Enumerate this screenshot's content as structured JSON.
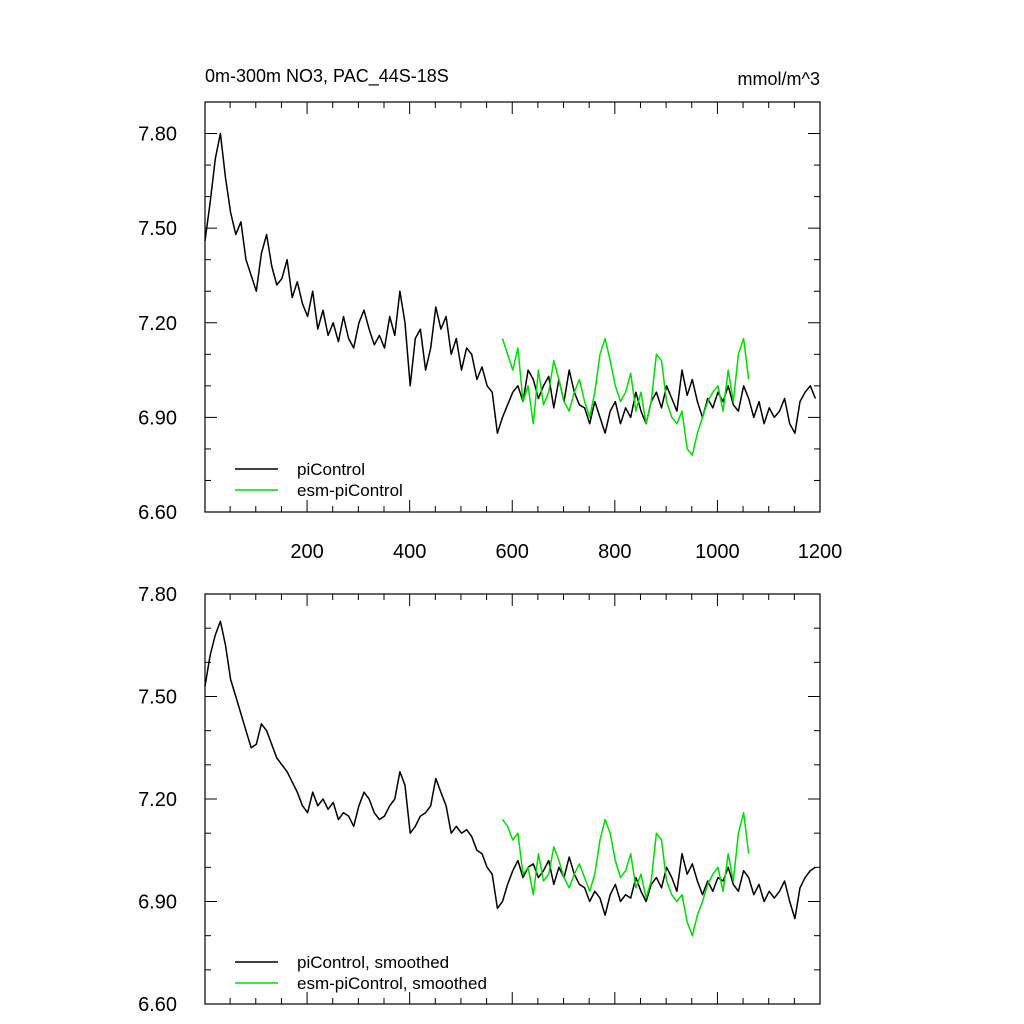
{
  "chart_data": [
    {
      "type": "line",
      "title": "0m-300m NO3, PAC_44S-18S",
      "units": "mmol/m^3",
      "xlim": [
        1,
        1200
      ],
      "ylim": [
        6.6,
        7.9
      ],
      "xticks": [
        200,
        400,
        600,
        800,
        1000,
        1200
      ],
      "xtick_labels": [
        "200",
        "400",
        "600",
        "800",
        "1000",
        "1200"
      ],
      "yticks": [
        6.6,
        6.9,
        7.2,
        7.5,
        7.8
      ],
      "ytick_labels": [
        "6.60",
        "6.90",
        "7.20",
        "7.50",
        "7.80"
      ],
      "grid": false,
      "legend": "bottom-left",
      "series": [
        {
          "name": "piControl",
          "color": "#000000",
          "x_start": 1,
          "x_step": 10,
          "values": [
            7.46,
            7.58,
            7.72,
            7.8,
            7.66,
            7.55,
            7.48,
            7.52,
            7.4,
            7.35,
            7.3,
            7.42,
            7.48,
            7.38,
            7.32,
            7.34,
            7.4,
            7.28,
            7.33,
            7.26,
            7.22,
            7.3,
            7.18,
            7.24,
            7.16,
            7.2,
            7.14,
            7.22,
            7.15,
            7.12,
            7.2,
            7.24,
            7.18,
            7.13,
            7.16,
            7.12,
            7.22,
            7.16,
            7.3,
            7.2,
            7.0,
            7.15,
            7.18,
            7.05,
            7.12,
            7.25,
            7.18,
            7.22,
            7.1,
            7.15,
            7.05,
            7.12,
            7.1,
            7.02,
            7.06,
            7.0,
            6.98,
            6.85,
            6.9,
            6.94,
            6.98,
            7.0,
            6.95,
            7.05,
            7.02,
            6.96,
            7.0,
            7.03,
            6.93,
            7.02,
            6.95,
            7.05,
            6.98,
            6.94,
            6.93,
            6.88,
            6.95,
            6.9,
            6.85,
            6.92,
            6.95,
            6.88,
            6.93,
            6.9,
            6.98,
            6.92,
            6.88,
            6.95,
            6.98,
            6.93,
            7.0,
            6.96,
            6.92,
            7.05,
            6.97,
            7.02,
            6.95,
            6.9,
            6.96,
            6.93,
            6.98,
            6.95,
            7.0,
            6.94,
            6.92,
            7.0,
            6.96,
            6.9,
            6.95,
            6.88,
            6.93,
            6.9,
            6.92,
            6.96,
            6.88,
            6.85,
            6.95,
            6.98,
            7.0,
            6.96
          ]
        },
        {
          "name": "esm-piControl",
          "color": "#00dd00",
          "x_start": 581,
          "x_step": 10,
          "values": [
            7.15,
            7.1,
            7.05,
            7.12,
            6.95,
            7.0,
            6.88,
            7.05,
            6.94,
            6.98,
            7.08,
            7.02,
            6.95,
            6.92,
            6.98,
            7.02,
            6.95,
            6.9,
            6.98,
            7.1,
            7.15,
            7.08,
            7.0,
            6.95,
            6.98,
            7.04,
            6.92,
            6.98,
            6.88,
            6.95,
            7.1,
            7.08,
            6.95,
            6.9,
            6.88,
            6.92,
            6.8,
            6.78,
            6.85,
            6.9,
            6.95,
            6.98,
            7.0,
            6.92,
            7.05,
            6.95,
            7.1,
            7.15,
            7.02
          ]
        }
      ]
    },
    {
      "type": "line",
      "units": "mmol/m^3",
      "xlim": [
        1,
        1200
      ],
      "ylim": [
        6.6,
        7.8
      ],
      "yticks": [
        6.6,
        6.9,
        7.2,
        7.5,
        7.8
      ],
      "ytick_labels": [
        "6.60",
        "6.90",
        "7.20",
        "7.50",
        "7.80"
      ],
      "grid": false,
      "legend": "bottom-left",
      "series": [
        {
          "name": "piControl, smoothed",
          "color": "#000000",
          "x_start": 1,
          "x_step": 10,
          "values": [
            7.53,
            7.62,
            7.68,
            7.72,
            7.65,
            7.55,
            7.5,
            7.45,
            7.4,
            7.35,
            7.36,
            7.42,
            7.4,
            7.36,
            7.32,
            7.3,
            7.28,
            7.25,
            7.22,
            7.18,
            7.16,
            7.22,
            7.18,
            7.2,
            7.17,
            7.19,
            7.14,
            7.16,
            7.15,
            7.12,
            7.18,
            7.22,
            7.2,
            7.16,
            7.14,
            7.15,
            7.18,
            7.2,
            7.28,
            7.24,
            7.1,
            7.12,
            7.15,
            7.16,
            7.18,
            7.26,
            7.22,
            7.18,
            7.1,
            7.12,
            7.1,
            7.11,
            7.09,
            7.05,
            7.04,
            7.0,
            6.98,
            6.88,
            6.9,
            6.95,
            6.99,
            7.02,
            6.97,
            7.0,
            7.01,
            6.97,
            6.99,
            7.02,
            6.95,
            7.0,
            6.97,
            7.03,
            6.98,
            6.95,
            6.94,
            6.9,
            6.93,
            6.91,
            6.86,
            6.92,
            6.95,
            6.9,
            6.92,
            6.91,
            6.97,
            6.93,
            6.9,
            6.95,
            6.97,
            6.94,
            7.0,
            6.97,
            6.93,
            7.04,
            6.98,
            7.01,
            6.96,
            6.92,
            6.96,
            6.93,
            6.97,
            6.96,
            7.0,
            6.95,
            6.93,
            6.99,
            6.97,
            6.92,
            6.95,
            6.9,
            6.93,
            6.91,
            6.93,
            6.96,
            6.9,
            6.85,
            6.94,
            6.97,
            6.99,
            7.0
          ]
        },
        {
          "name": "esm-piControl, smoothed",
          "color": "#00dd00",
          "x_start": 581,
          "x_step": 10,
          "values": [
            7.14,
            7.12,
            7.08,
            7.1,
            6.98,
            7.0,
            6.92,
            7.04,
            6.96,
            6.98,
            7.06,
            7.02,
            6.97,
            6.94,
            6.98,
            7.01,
            6.97,
            6.93,
            6.98,
            7.08,
            7.14,
            7.1,
            7.02,
            6.97,
            6.99,
            7.04,
            6.94,
            6.98,
            6.91,
            6.96,
            7.1,
            7.08,
            6.96,
            6.92,
            6.9,
            6.92,
            6.84,
            6.8,
            6.86,
            6.9,
            6.95,
            6.98,
            7.0,
            6.93,
            7.04,
            6.96,
            7.1,
            7.16,
            7.04
          ]
        }
      ]
    }
  ]
}
